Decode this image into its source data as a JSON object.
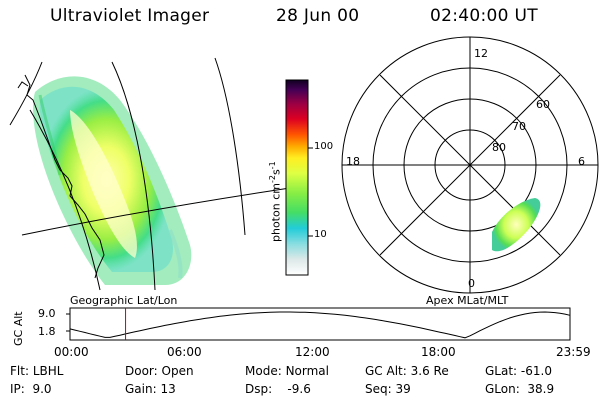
{
  "header": {
    "instrument": "Ultraviolet Imager",
    "date": "28 Jun 00",
    "time": "02:40:00 UT"
  },
  "image_panel": {
    "label": "Geographic Lat/Lon"
  },
  "polar_panel": {
    "label": "Apex MLat/MLT",
    "mlt_labels": {
      "top": "12",
      "left": "18",
      "right": "6",
      "bottom": "0"
    },
    "lat_labels": [
      "60",
      "70",
      "80"
    ]
  },
  "colorbar": {
    "unit_text": "photon cm",
    "unit_sup1": "-2",
    "unit_s": "s",
    "unit_sup2": "-1",
    "ticks": [
      "100",
      "10"
    ]
  },
  "altitude_plot": {
    "ylabel": "GC Alt",
    "yticks": [
      "9.0",
      "1.8"
    ],
    "xticks": [
      "00:00",
      "06:00",
      "12:00",
      "18:00",
      "23:59"
    ],
    "current_time_hours": 2.667,
    "marker_color": "#cc0000"
  },
  "info": {
    "row1": [
      {
        "label": "Flt:",
        "value": "LBHL"
      },
      {
        "label": "Door:",
        "value": "Open"
      },
      {
        "label": "Mode:",
        "value": "Normal"
      },
      {
        "label": "GC Alt:",
        "value": "3.6 Re"
      },
      {
        "label": "GLat:",
        "value": "-61.0"
      }
    ],
    "row2": [
      {
        "label": "IP:",
        "value": "9.0"
      },
      {
        "label": "Gain:",
        "value": "13"
      },
      {
        "label": "Dsp:",
        "value": "-9.6"
      },
      {
        "label": "Seq:",
        "value": "39"
      },
      {
        "label": "GLon:",
        "value": "38.9"
      }
    ]
  }
}
